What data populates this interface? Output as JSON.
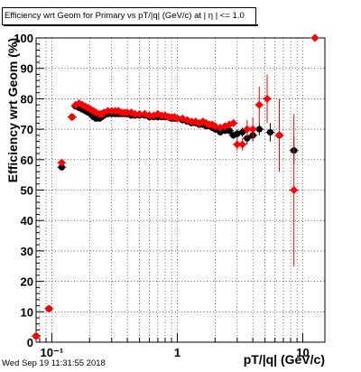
{
  "timestamp": "Wed Sep 19 11:31:55 2018",
  "chart_data": {
    "type": "scatter",
    "title": "Efficiency wrt Geom for Primary vs pT/|q| (GeV/c) at |  η | <= 1.0",
    "xlabel": "pT/|q| (GeV/c)",
    "ylabel": "Efficiency wrt Geom (%)",
    "xscale": "log",
    "xlim": [
      0.075,
      15
    ],
    "ylim": [
      0,
      100
    ],
    "grid": true,
    "x_tick_labels": [
      "10⁻¹",
      "1",
      "10"
    ],
    "y_tick_labels": [
      "0",
      "10",
      "20",
      "30",
      "40",
      "50",
      "60",
      "70",
      "80",
      "90",
      "100"
    ],
    "series": [
      {
        "color": "#000000",
        "marker": "circle",
        "points": [
          {
            "x": 0.075,
            "y": 2,
            "ey": 1.5
          },
          {
            "x": 0.095,
            "y": 11,
            "ey": 1
          },
          {
            "x": 0.12,
            "y": 57.5,
            "ey": 1
          },
          {
            "x": 0.145,
            "y": 74,
            "ey": 1
          },
          {
            "x": 0.155,
            "y": 77.5,
            "ey": 0.5
          },
          {
            "x": 0.165,
            "y": 77,
            "ey": 0.5
          },
          {
            "x": 0.175,
            "y": 76.5,
            "ey": 0.5
          },
          {
            "x": 0.185,
            "y": 76,
            "ey": 0.5
          },
          {
            "x": 0.195,
            "y": 75.5,
            "ey": 0.5
          },
          {
            "x": 0.205,
            "y": 75,
            "ey": 0.5
          },
          {
            "x": 0.215,
            "y": 74,
            "ey": 0.5
          },
          {
            "x": 0.225,
            "y": 73.5,
            "ey": 0.5
          },
          {
            "x": 0.24,
            "y": 73.5,
            "ey": 0.5
          },
          {
            "x": 0.25,
            "y": 74,
            "ey": 0.5
          },
          {
            "x": 0.26,
            "y": 74.5,
            "ey": 0.5
          },
          {
            "x": 0.28,
            "y": 75,
            "ey": 0.5
          },
          {
            "x": 0.3,
            "y": 75,
            "ey": 0.5
          },
          {
            "x": 0.32,
            "y": 75,
            "ey": 0.5
          },
          {
            "x": 0.34,
            "y": 75,
            "ey": 0.5
          },
          {
            "x": 0.36,
            "y": 75,
            "ey": 0.5
          },
          {
            "x": 0.38,
            "y": 75,
            "ey": 0.5
          },
          {
            "x": 0.4,
            "y": 75,
            "ey": 0.5
          },
          {
            "x": 0.43,
            "y": 74.5,
            "ey": 0.5
          },
          {
            "x": 0.46,
            "y": 74.5,
            "ey": 0.5
          },
          {
            "x": 0.5,
            "y": 74.5,
            "ey": 0.5
          },
          {
            "x": 0.55,
            "y": 74.5,
            "ey": 0.5
          },
          {
            "x": 0.6,
            "y": 74,
            "ey": 0.5
          },
          {
            "x": 0.65,
            "y": 74,
            "ey": 0.5
          },
          {
            "x": 0.7,
            "y": 74,
            "ey": 0.5
          },
          {
            "x": 0.75,
            "y": 74,
            "ey": 0.5
          },
          {
            "x": 0.8,
            "y": 74,
            "ey": 0.5
          },
          {
            "x": 0.85,
            "y": 74,
            "ey": 0.5
          },
          {
            "x": 0.9,
            "y": 73.5,
            "ey": 0.5
          },
          {
            "x": 0.95,
            "y": 73.5,
            "ey": 0.5
          },
          {
            "x": 1.0,
            "y": 73.5,
            "ey": 0.5
          },
          {
            "x": 1.1,
            "y": 73,
            "ey": 0.5
          },
          {
            "x": 1.2,
            "y": 72.5,
            "ey": 0.7
          },
          {
            "x": 1.3,
            "y": 72,
            "ey": 0.7
          },
          {
            "x": 1.4,
            "y": 72,
            "ey": 0.7
          },
          {
            "x": 1.5,
            "y": 71.5,
            "ey": 0.8
          },
          {
            "x": 1.6,
            "y": 71.5,
            "ey": 0.8
          },
          {
            "x": 1.7,
            "y": 71,
            "ey": 0.8
          },
          {
            "x": 1.8,
            "y": 71,
            "ey": 0.8
          },
          {
            "x": 1.9,
            "y": 70.5,
            "ey": 0.9
          },
          {
            "x": 2.0,
            "y": 70,
            "ey": 1
          },
          {
            "x": 2.2,
            "y": 69,
            "ey": 1
          },
          {
            "x": 2.4,
            "y": 69.5,
            "ey": 1
          },
          {
            "x": 2.6,
            "y": 69.5,
            "ey": 1.2
          },
          {
            "x": 2.8,
            "y": 68,
            "ey": 1.2
          },
          {
            "x": 3.0,
            "y": 68.5,
            "ey": 1.5
          },
          {
            "x": 3.3,
            "y": 69,
            "ey": 1.5
          },
          {
            "x": 3.6,
            "y": 67,
            "ey": 2
          },
          {
            "x": 4.0,
            "y": 68,
            "ey": 2
          },
          {
            "x": 4.5,
            "y": 70,
            "ey": 2
          },
          {
            "x": 5.5,
            "y": 69,
            "ey": 3
          },
          {
            "x": 6.5,
            "y": 68,
            "ey": 4
          },
          {
            "x": 8.5,
            "y": 63,
            "ey": 4.5
          }
        ]
      },
      {
        "color": "#ff0000",
        "marker": "diamond",
        "points": [
          {
            "x": 0.075,
            "y": 2,
            "ey": 1.5
          },
          {
            "x": 0.095,
            "y": 11,
            "ey": 1
          },
          {
            "x": 0.12,
            "y": 59,
            "ey": 1
          },
          {
            "x": 0.145,
            "y": 74,
            "ey": 1
          },
          {
            "x": 0.155,
            "y": 78,
            "ey": 0.5
          },
          {
            "x": 0.165,
            "y": 78.5,
            "ey": 0.5
          },
          {
            "x": 0.175,
            "y": 78,
            "ey": 0.5
          },
          {
            "x": 0.185,
            "y": 77.5,
            "ey": 0.5
          },
          {
            "x": 0.195,
            "y": 77,
            "ey": 0.5
          },
          {
            "x": 0.205,
            "y": 76.5,
            "ey": 0.5
          },
          {
            "x": 0.215,
            "y": 76,
            "ey": 0.5
          },
          {
            "x": 0.225,
            "y": 75.5,
            "ey": 0.5
          },
          {
            "x": 0.24,
            "y": 75,
            "ey": 0.5
          },
          {
            "x": 0.25,
            "y": 75,
            "ey": 0.5
          },
          {
            "x": 0.26,
            "y": 75.5,
            "ey": 0.5
          },
          {
            "x": 0.28,
            "y": 76,
            "ey": 0.5
          },
          {
            "x": 0.3,
            "y": 76,
            "ey": 0.5
          },
          {
            "x": 0.32,
            "y": 76,
            "ey": 0.5
          },
          {
            "x": 0.34,
            "y": 76,
            "ey": 0.5
          },
          {
            "x": 0.36,
            "y": 75.5,
            "ey": 0.5
          },
          {
            "x": 0.38,
            "y": 75.5,
            "ey": 0.5
          },
          {
            "x": 0.4,
            "y": 75.5,
            "ey": 0.5
          },
          {
            "x": 0.43,
            "y": 75.5,
            "ey": 0.5
          },
          {
            "x": 0.46,
            "y": 75,
            "ey": 0.5
          },
          {
            "x": 0.5,
            "y": 75,
            "ey": 0.5
          },
          {
            "x": 0.55,
            "y": 75,
            "ey": 0.5
          },
          {
            "x": 0.6,
            "y": 74.5,
            "ey": 0.5
          },
          {
            "x": 0.65,
            "y": 74.5,
            "ey": 0.5
          },
          {
            "x": 0.7,
            "y": 75,
            "ey": 0.5
          },
          {
            "x": 0.75,
            "y": 74.5,
            "ey": 0.5
          },
          {
            "x": 0.8,
            "y": 74.5,
            "ey": 0.5
          },
          {
            "x": 0.85,
            "y": 74,
            "ey": 0.5
          },
          {
            "x": 0.9,
            "y": 74,
            "ey": 0.5
          },
          {
            "x": 0.95,
            "y": 74,
            "ey": 0.5
          },
          {
            "x": 1.0,
            "y": 73.5,
            "ey": 0.5
          },
          {
            "x": 1.1,
            "y": 73.5,
            "ey": 0.5
          },
          {
            "x": 1.2,
            "y": 73,
            "ey": 0.7
          },
          {
            "x": 1.3,
            "y": 72.5,
            "ey": 0.7
          },
          {
            "x": 1.4,
            "y": 72.5,
            "ey": 0.7
          },
          {
            "x": 1.5,
            "y": 72,
            "ey": 0.8
          },
          {
            "x": 1.6,
            "y": 72.5,
            "ey": 0.8
          },
          {
            "x": 1.7,
            "y": 72,
            "ey": 0.8
          },
          {
            "x": 1.8,
            "y": 71.5,
            "ey": 0.8
          },
          {
            "x": 1.9,
            "y": 71.5,
            "ey": 0.9
          },
          {
            "x": 2.0,
            "y": 71,
            "ey": 1
          },
          {
            "x": 2.2,
            "y": 70.5,
            "ey": 1
          },
          {
            "x": 2.4,
            "y": 71,
            "ey": 1
          },
          {
            "x": 2.6,
            "y": 71.5,
            "ey": 1.2
          },
          {
            "x": 2.8,
            "y": 72,
            "ey": 1.2
          },
          {
            "x": 3.0,
            "y": 65,
            "ey": 2
          },
          {
            "x": 3.3,
            "y": 65,
            "ey": 2
          },
          {
            "x": 3.6,
            "y": 70,
            "ey": 3
          },
          {
            "x": 4.0,
            "y": 70,
            "ey": 4
          },
          {
            "x": 4.5,
            "y": 78,
            "ey": 6
          },
          {
            "x": 5.2,
            "y": 80,
            "ey": 8
          },
          {
            "x": 6.5,
            "y": 68,
            "ey": 12
          },
          {
            "x": 8.5,
            "y": 50,
            "ey": 25
          },
          {
            "x": 12.5,
            "y": 100,
            "ey": 0
          }
        ]
      }
    ]
  }
}
